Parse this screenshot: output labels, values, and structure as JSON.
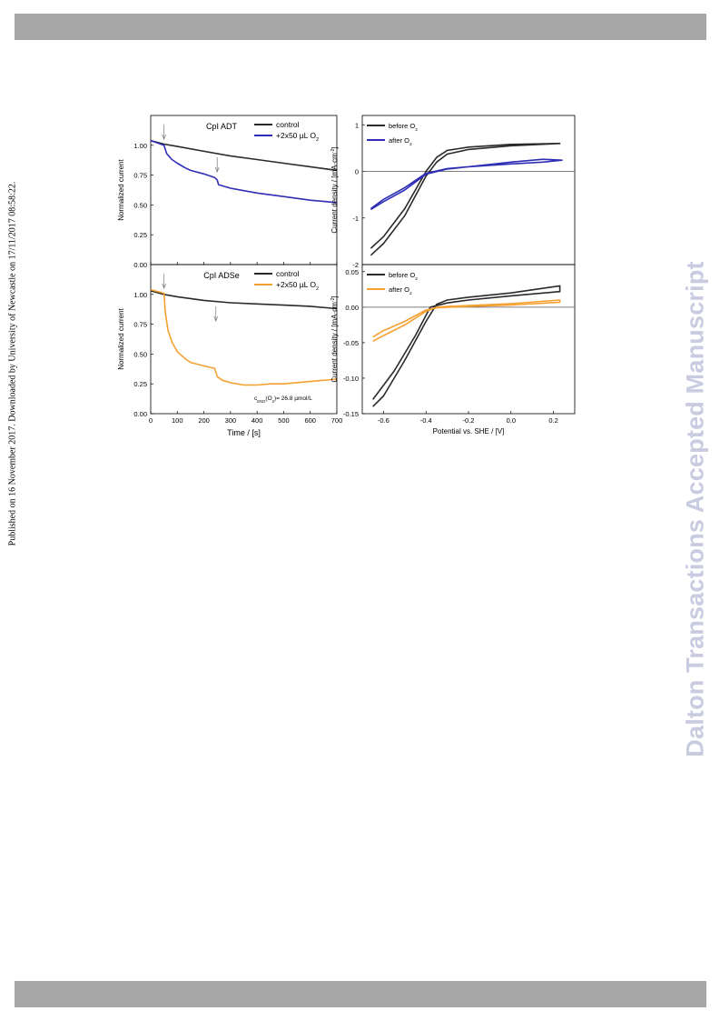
{
  "header": {},
  "side_note": "Published on 16 November 2017. Downloaded by University of Newcastle on 17/11/2017 08:58:22.",
  "watermark": "Dalton Transactions Accepted Manuscript",
  "colors": {
    "black": "#2a2a2a",
    "blue": "#2e2eb5",
    "orange": "#f5a030",
    "frame": "#000000",
    "bar": "#a6a6a6",
    "watermark": "#c9cbe0"
  },
  "chart_data": [
    {
      "id": "adt-time",
      "type": "line",
      "title": "CpI ADT",
      "ylabel": "Normalized current",
      "xlabel": "",
      "xlim": [
        0,
        700
      ],
      "ylim": [
        0,
        1.25
      ],
      "yticks": [
        "0.00",
        "0.25",
        "0.50",
        "0.75",
        "1.00"
      ],
      "legend": "top-right",
      "arrows_at_x": [
        50,
        250
      ],
      "series": [
        {
          "name": "control",
          "color": "black",
          "x": [
            0,
            50,
            100,
            200,
            300,
            400,
            500,
            600,
            700
          ],
          "y": [
            1.04,
            1.01,
            0.99,
            0.95,
            0.91,
            0.88,
            0.85,
            0.82,
            0.79
          ]
        },
        {
          "name": "+2x50 µL O",
          "sub": "2",
          "color": "blue",
          "x": [
            0,
            50,
            60,
            80,
            100,
            130,
            150,
            200,
            240,
            250,
            255,
            300,
            400,
            500,
            600,
            700
          ],
          "y": [
            1.04,
            1.0,
            0.93,
            0.88,
            0.85,
            0.81,
            0.79,
            0.76,
            0.73,
            0.71,
            0.67,
            0.64,
            0.6,
            0.57,
            0.54,
            0.52
          ]
        }
      ]
    },
    {
      "id": "adse-time",
      "type": "line",
      "title": "CpI ADSe",
      "ylabel": "Normalized current",
      "xlabel": "Time / [s]",
      "xlim": [
        0,
        700
      ],
      "ylim": [
        0,
        1.25
      ],
      "xticks": [
        "0",
        "100",
        "200",
        "300",
        "400",
        "500",
        "600",
        "700"
      ],
      "yticks": [
        "0.00",
        "0.25",
        "0.50",
        "0.75",
        "1.00"
      ],
      "legend": "top-right",
      "annotation": {
        "pre": "c",
        "sub": "ENO",
        "post": "(O",
        "sub2": "2",
        "tail": ")= 26.8 µmol/L"
      },
      "arrows_at_x": [
        50,
        245
      ],
      "series": [
        {
          "name": "control",
          "color": "black",
          "x": [
            0,
            50,
            100,
            200,
            300,
            400,
            500,
            600,
            700
          ],
          "y": [
            1.03,
            1.0,
            0.98,
            0.95,
            0.93,
            0.92,
            0.91,
            0.9,
            0.88
          ]
        },
        {
          "name": "+2x50 µL O",
          "sub": "2",
          "color": "orange",
          "x": [
            0,
            50,
            55,
            65,
            80,
            100,
            130,
            150,
            200,
            240,
            245,
            250,
            270,
            300,
            350,
            400,
            450,
            500,
            600,
            700
          ],
          "y": [
            1.04,
            1.01,
            0.85,
            0.7,
            0.6,
            0.52,
            0.46,
            0.43,
            0.4,
            0.38,
            0.35,
            0.31,
            0.28,
            0.26,
            0.24,
            0.24,
            0.25,
            0.25,
            0.27,
            0.29
          ]
        }
      ]
    },
    {
      "id": "adt-cv",
      "type": "line",
      "title": "",
      "ylabel": "Current density / [mA·cm",
      "ylabel_sup": "-2",
      "ylabel_tail": "]",
      "xlabel": "",
      "xlim": [
        -0.7,
        0.3
      ],
      "ylim": [
        -2.0,
        1.2
      ],
      "yticks": [
        "-2",
        "-1",
        "0",
        "1"
      ],
      "legend": "top-left",
      "series": [
        {
          "name": "before O",
          "sub": "2",
          "color": "black",
          "x": [
            -0.66,
            -0.6,
            -0.5,
            -0.4,
            -0.35,
            -0.3,
            -0.2,
            0.0,
            0.23,
            0.23,
            0.0,
            -0.2,
            -0.3,
            -0.35,
            -0.4,
            -0.5,
            -0.6,
            -0.66
          ],
          "y": [
            -1.8,
            -1.55,
            -0.95,
            -0.1,
            0.2,
            0.37,
            0.47,
            0.55,
            0.6,
            0.6,
            0.58,
            0.52,
            0.45,
            0.3,
            0.0,
            -0.8,
            -1.4,
            -1.65
          ]
        },
        {
          "name": "after O",
          "sub": "2",
          "color": "blue",
          "x": [
            -0.66,
            -0.6,
            -0.5,
            -0.4,
            -0.3,
            -0.2,
            0.0,
            0.15,
            0.24,
            0.24,
            0.15,
            0.0,
            -0.2,
            -0.3,
            -0.4,
            -0.5,
            -0.6,
            -0.66
          ],
          "y": [
            -0.82,
            -0.65,
            -0.4,
            -0.06,
            0.05,
            0.1,
            0.16,
            0.2,
            0.24,
            0.24,
            0.26,
            0.2,
            0.1,
            0.06,
            -0.04,
            -0.35,
            -0.6,
            -0.8
          ]
        }
      ]
    },
    {
      "id": "adse-cv",
      "type": "line",
      "title": "",
      "ylabel": "Current density / [mA·cm",
      "ylabel_sup": "-2",
      "ylabel_tail": "]",
      "xlabel": "Potential vs. SHE / [V]",
      "xlim": [
        -0.7,
        0.3
      ],
      "ylim": [
        -0.15,
        0.06
      ],
      "xticks": [
        "-0.6",
        "-0.4",
        "-0.2",
        "0.0",
        "0.2"
      ],
      "xtick_values": [
        -0.6,
        -0.4,
        -0.2,
        0.0,
        0.2
      ],
      "yticks": [
        "-0.15",
        "-0.10",
        "-0.05",
        "0.00",
        "0.05"
      ],
      "ytick_values": [
        -0.15,
        -0.1,
        -0.05,
        0.0,
        0.05
      ],
      "legend": "top-left",
      "series": [
        {
          "name": "before O",
          "sub": "2",
          "color": "black",
          "x": [
            -0.65,
            -0.6,
            -0.5,
            -0.4,
            -0.35,
            -0.3,
            -0.2,
            0.0,
            0.23,
            0.23,
            0.0,
            -0.2,
            -0.3,
            -0.38,
            -0.45,
            -0.55,
            -0.65
          ],
          "y": [
            -0.14,
            -0.125,
            -0.075,
            -0.02,
            0.004,
            0.01,
            0.014,
            0.02,
            0.03,
            0.022,
            0.016,
            0.01,
            0.006,
            0.0,
            -0.04,
            -0.09,
            -0.13
          ]
        },
        {
          "name": "after O",
          "sub": "2",
          "color": "orange",
          "x": [
            -0.65,
            -0.6,
            -0.5,
            -0.4,
            -0.35,
            -0.3,
            0.0,
            0.23,
            0.23,
            0.0,
            -0.3,
            -0.35,
            -0.4,
            -0.5,
            -0.6,
            -0.65
          ],
          "y": [
            -0.048,
            -0.04,
            -0.025,
            -0.006,
            0.0,
            0.001,
            0.005,
            0.01,
            0.007,
            0.003,
            0.0,
            -0.001,
            -0.004,
            -0.02,
            -0.033,
            -0.042
          ]
        }
      ]
    }
  ]
}
